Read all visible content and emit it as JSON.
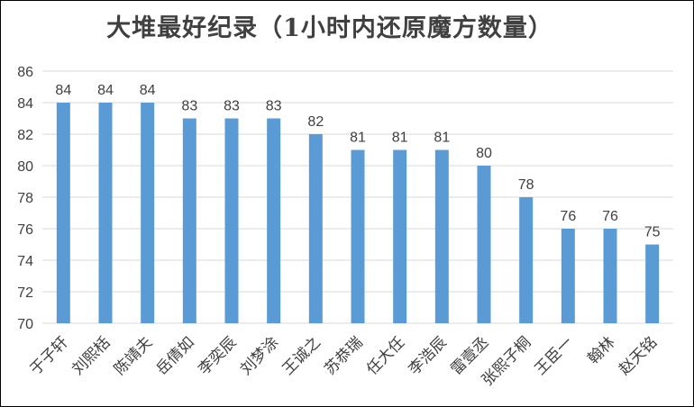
{
  "chart_data": {
    "type": "bar",
    "title": "大堆最好纪录（1小时内还原魔方数量）",
    "xlabel": "",
    "ylabel": "",
    "categories": [
      "于子轩",
      "刘熙栝",
      "陈靖夫",
      "岳倩如",
      "李奕辰",
      "刘梦涂",
      "王诚之",
      "苏恭瑞",
      "任大任",
      "李浩辰",
      "雷壹丞",
      "张熙子桐",
      "王臣一",
      "翰林",
      "赵天铭"
    ],
    "values": [
      84,
      84,
      84,
      83,
      83,
      83,
      82,
      81,
      81,
      81,
      80,
      78,
      76,
      76,
      75
    ],
    "ylim": [
      70,
      86
    ],
    "yticks": [
      70,
      72,
      74,
      76,
      78,
      80,
      82,
      84,
      86
    ],
    "grid": true,
    "legend": "none",
    "data_labels": true,
    "colors": {
      "bar": "#5B9BD5",
      "grid": "#D9D9D9",
      "text": "#404040",
      "title": "#404040"
    }
  }
}
